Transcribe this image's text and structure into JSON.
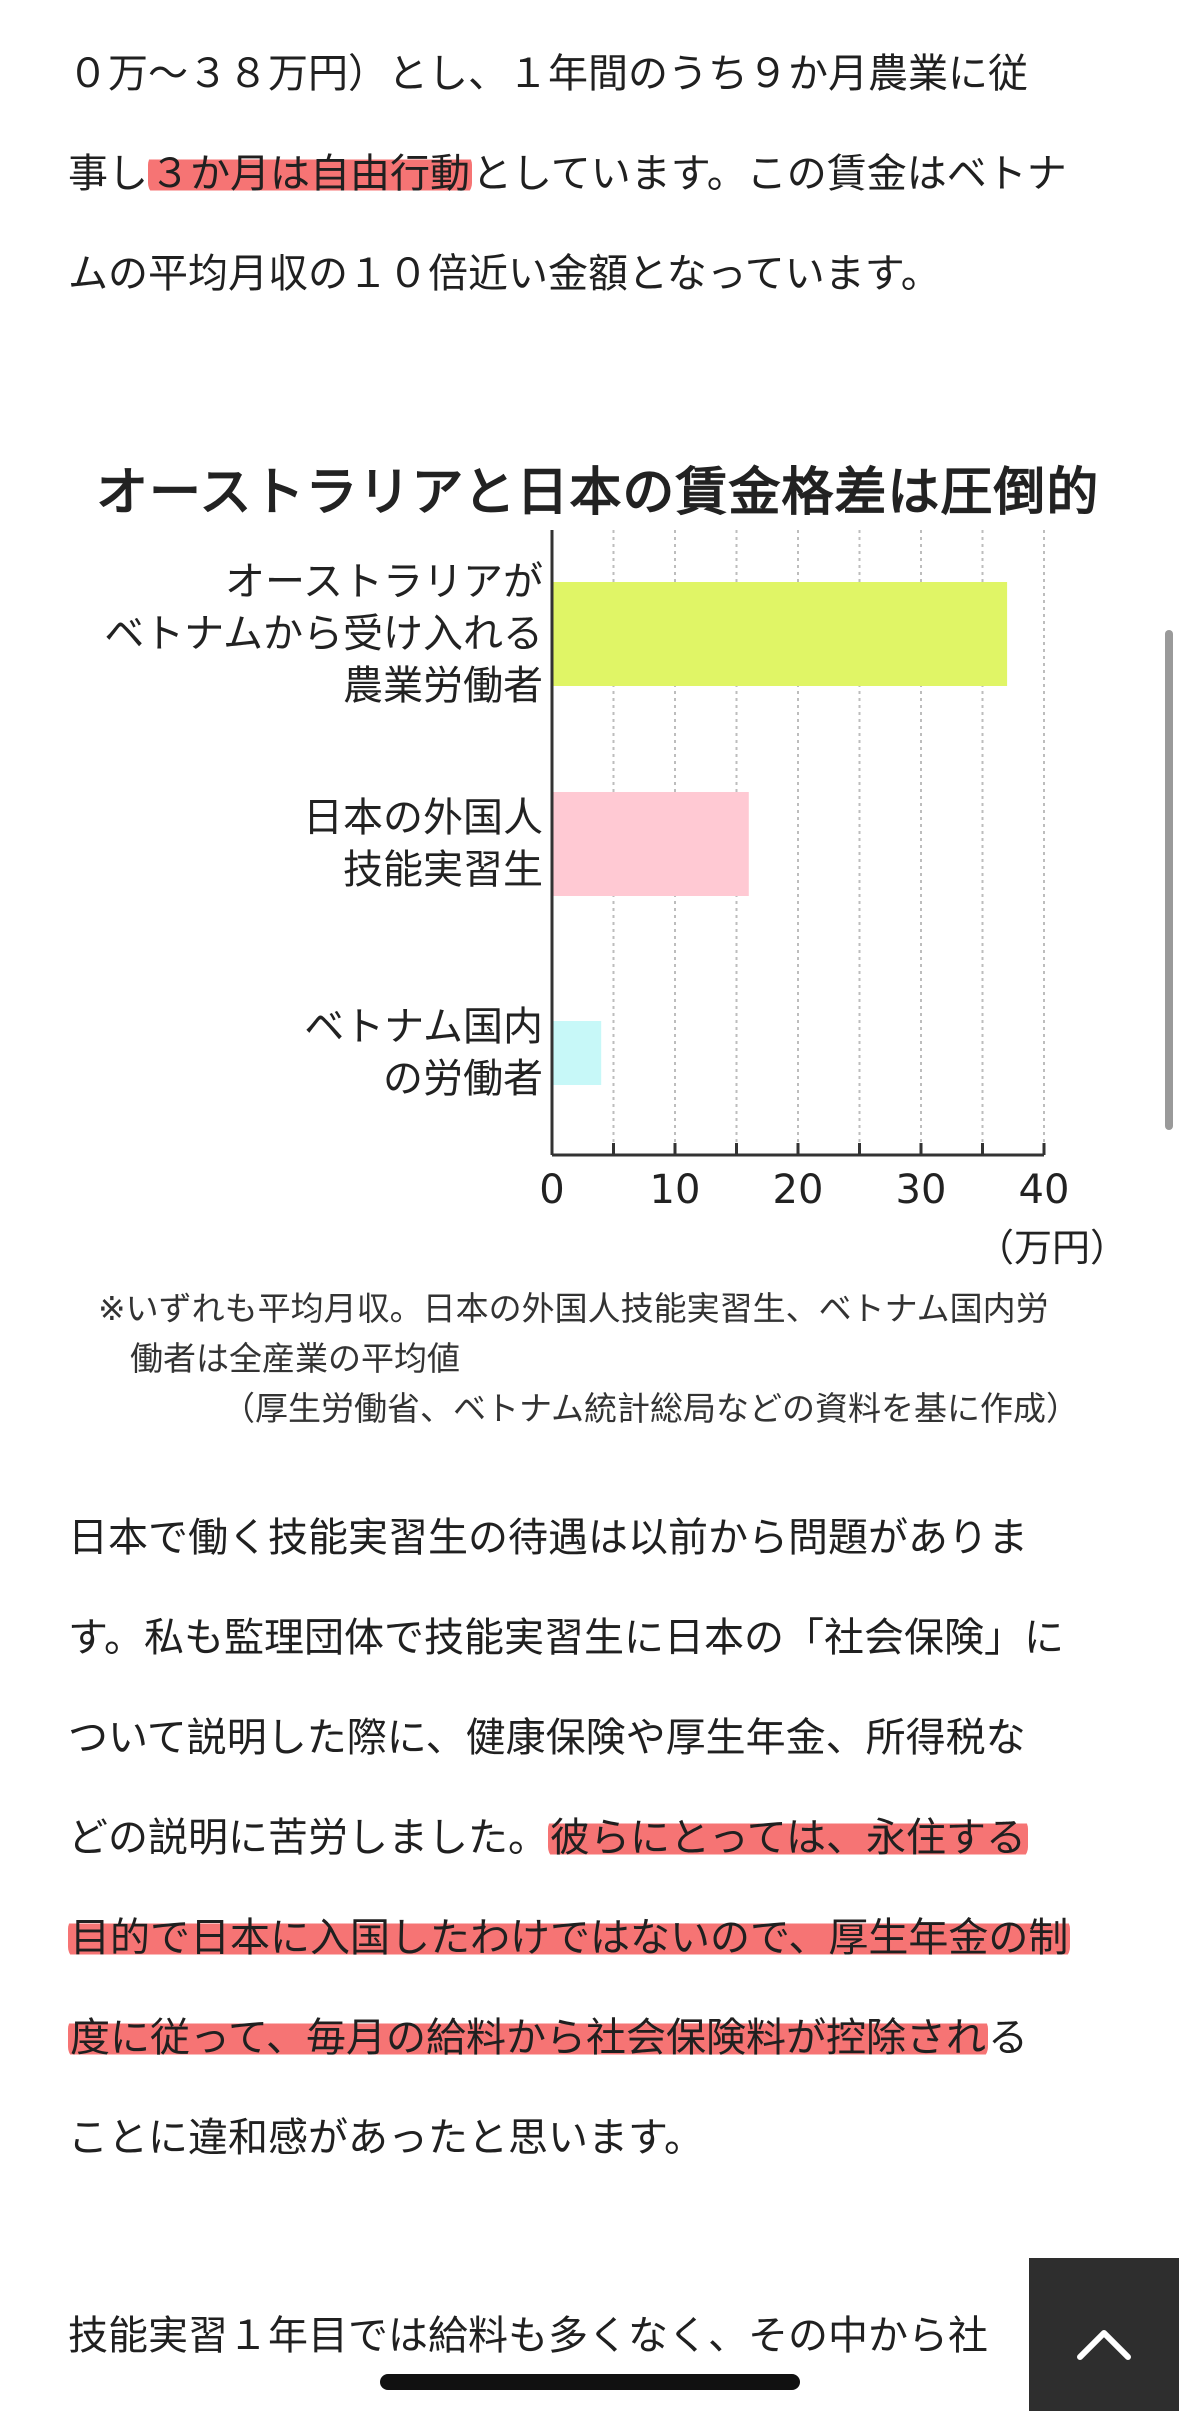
{
  "article": {
    "para1": [
      [
        {
          "t": "０万～３８万円）とし、１年間のうち９か月農業に従"
        }
      ],
      [
        {
          "t": "事し"
        },
        {
          "t": "３か月は自由行動",
          "hl": true
        },
        {
          "t": "としています。この賃金はベトナ"
        }
      ],
      [
        {
          "t": "ムの平均月収の１０倍近い金額となっています。"
        }
      ]
    ],
    "para2": [
      [
        {
          "t": "日本で働く技能実習生の待遇は以前から問題がありま"
        }
      ],
      [
        {
          "t": "す。私も監理団体で技能実習生に日本の「社会保険」に"
        }
      ],
      [
        {
          "t": "ついて説明した際に、健康保険や厚生年金、所得税な"
        }
      ],
      [
        {
          "t": "どの説明に苦労しました。"
        },
        {
          "t": "彼らにとっては、永住する",
          "hl": true
        }
      ],
      [
        {
          "t": "目的で日本に入国したわけではないので、厚生年金の制",
          "hl": true
        }
      ],
      [
        {
          "t": "度に従って、毎月の給料から社会保険料が控除され",
          "hl": true
        },
        {
          "t": "る"
        }
      ],
      [
        {
          "t": "ことに違和感があったと思います。"
        }
      ]
    ],
    "para3": [
      [
        {
          "t": "技能実習１年目では給料も多くなく、その中から社"
        }
      ]
    ]
  },
  "chart_data": {
    "type": "bar",
    "orientation": "horizontal",
    "title": "オーストラリアと日本の賃金格差は圧倒的",
    "categories": [
      [
        "オーストラリアが",
        "ベトナムから受け入れる",
        "農業労働者"
      ],
      [
        "日本の外国人",
        "技能実習生"
      ],
      [
        "ベトナム国内",
        "の労働者"
      ]
    ],
    "values": [
      37,
      16,
      4
    ],
    "colors": [
      "#e0f566",
      "#ffc9d3",
      "#c7f8f8"
    ],
    "xlim": [
      0,
      40
    ],
    "xticks": [
      "0",
      "10",
      "20",
      "30",
      "40"
    ],
    "xunit": "（万円）",
    "grid": true,
    "notes": [
      "※いずれも平均月収。日本の外国人技能実習生、ベトナム国内労",
      "働者は全産業の平均値",
      "（厚生労働省、ベトナム統計総局などの資料を基に作成）"
    ]
  },
  "ui": {
    "scroll_top_icon": "chevron-up-icon"
  }
}
